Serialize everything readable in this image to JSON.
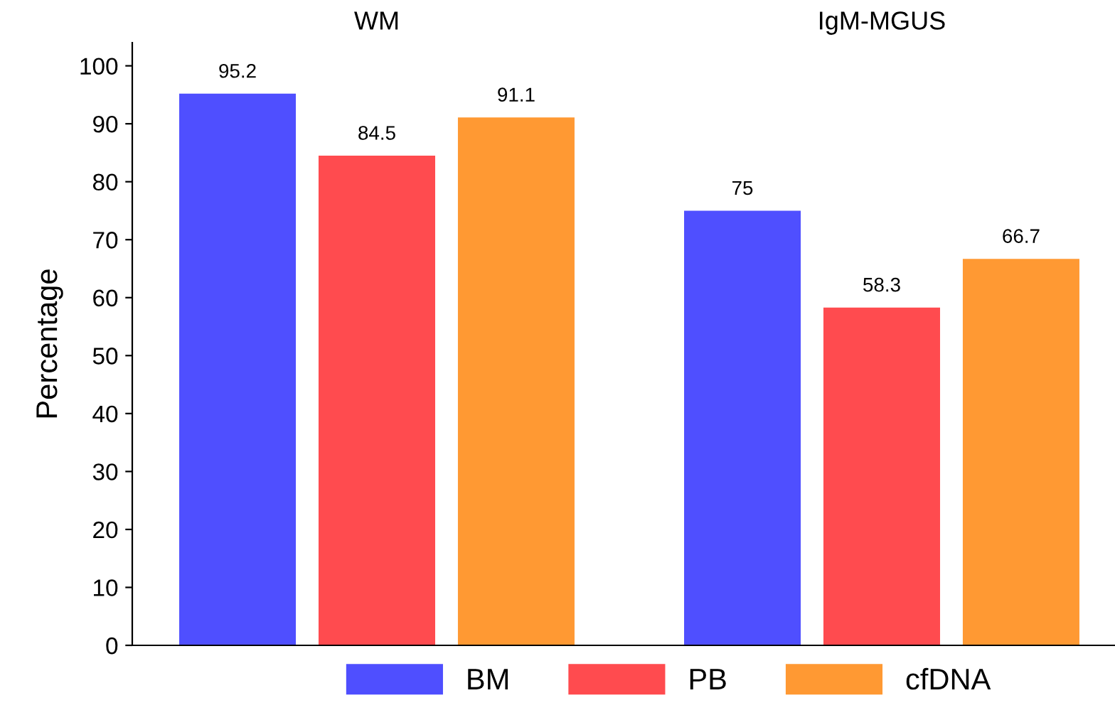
{
  "chart_data": {
    "type": "bar",
    "ylabel": "Percentage",
    "categories": [
      "WM",
      "IgM-MGUS"
    ],
    "ylim": [
      0,
      104
    ],
    "yticks": [
      0,
      10,
      20,
      30,
      40,
      50,
      60,
      70,
      80,
      90,
      100
    ],
    "data_labels": true,
    "legend": "bottom",
    "grid": false,
    "series": [
      {
        "name": "BM",
        "color": "#4f4fff",
        "values": [
          95.2,
          75
        ]
      },
      {
        "name": "PB",
        "color": "#ff4b4f",
        "values": [
          84.5,
          58.3
        ]
      },
      {
        "name": "cfDNA",
        "color": "#ff9933",
        "values": [
          91.1,
          66.7
        ]
      }
    ]
  }
}
